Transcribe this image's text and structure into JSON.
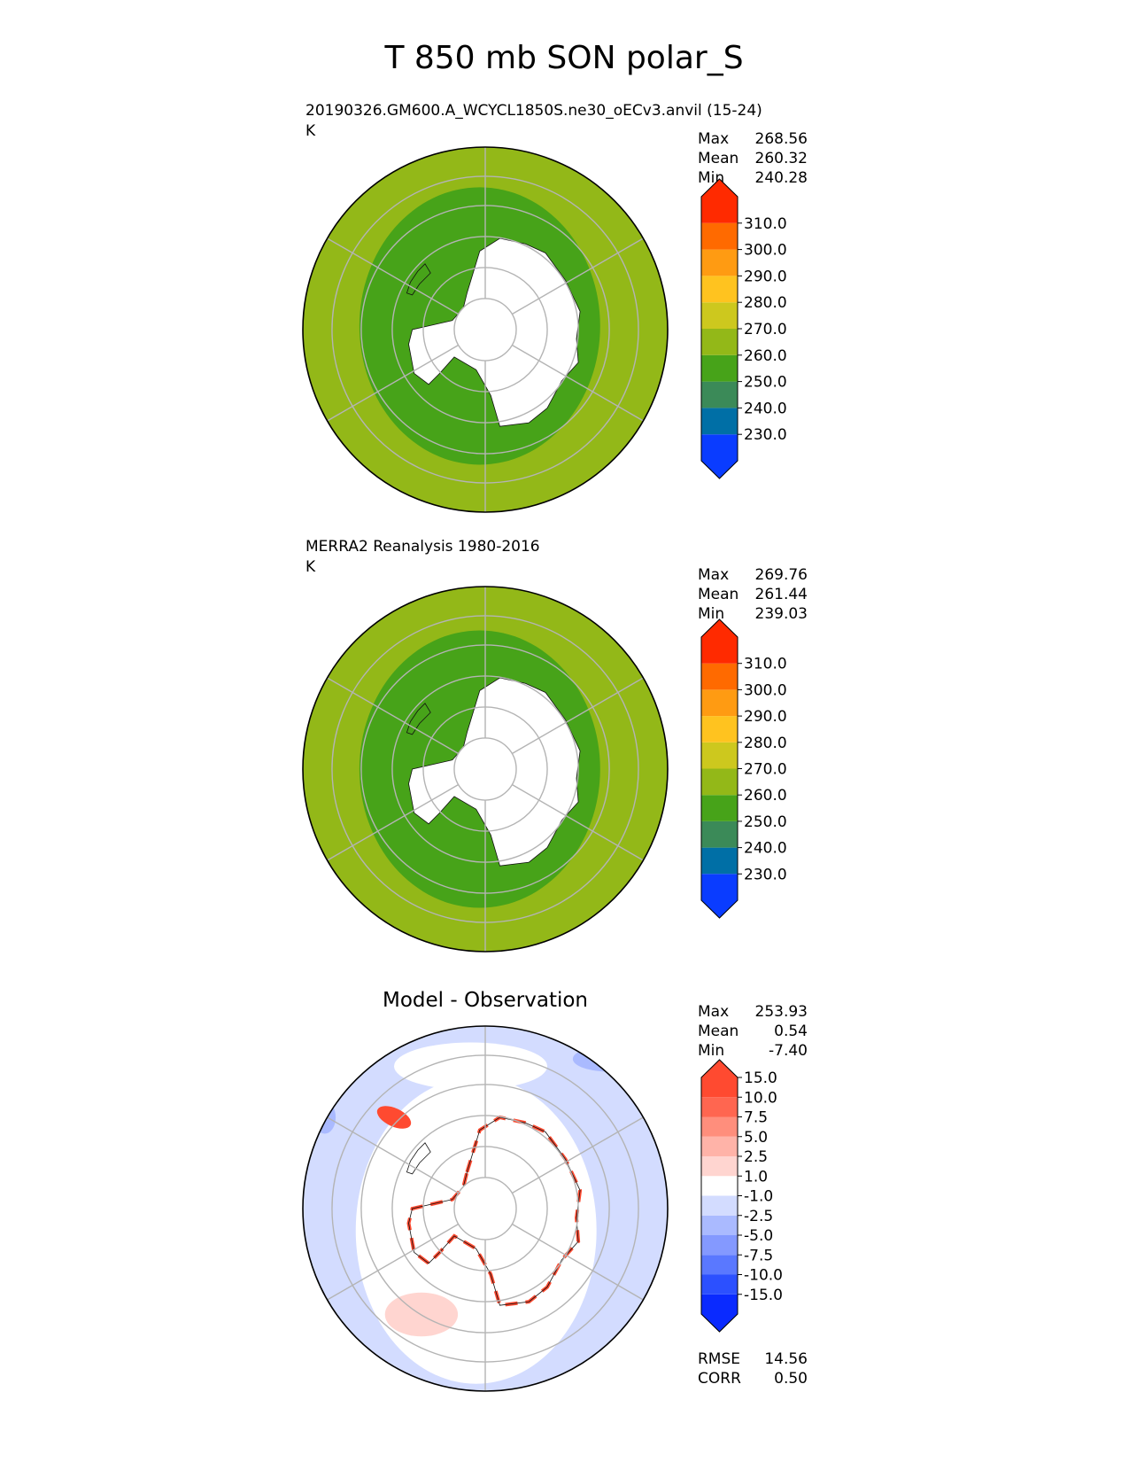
{
  "figure": {
    "title": "T 850 mb SON polar_S"
  },
  "chart_data": [
    {
      "type": "heatmap",
      "projection": "south-polar-stereographic",
      "title": "20190326.GM600.A_WCYCL1850S.ne30_oECv3.anvil (15-24)",
      "units": "K",
      "stats": {
        "max_label": "Max",
        "max": "268.56",
        "mean_label": "Mean",
        "mean": "260.32",
        "min_label": "Min",
        "min": "240.28"
      },
      "colorbar": {
        "extend": "both",
        "colors": [
          "#0a3cff",
          "#006fa6",
          "#3b8a58",
          "#47a319",
          "#93b818",
          "#cdc81e",
          "#ffc31f",
          "#ff9b12",
          "#ff6a00",
          "#ff2a00"
        ],
        "tick_labels": [
          "230.0",
          "240.0",
          "250.0",
          "260.0",
          "270.0",
          "280.0",
          "290.0",
          "300.0",
          "310.0"
        ]
      }
    },
    {
      "type": "heatmap",
      "projection": "south-polar-stereographic",
      "title": "MERRA2 Reanalysis 1980-2016",
      "units": "K",
      "stats": {
        "max_label": "Max",
        "max": "269.76",
        "mean_label": "Mean",
        "mean": "261.44",
        "min_label": "Min",
        "min": "239.03"
      },
      "colorbar": {
        "extend": "both",
        "colors": [
          "#0a3cff",
          "#006fa6",
          "#3b8a58",
          "#47a319",
          "#93b818",
          "#cdc81e",
          "#ffc31f",
          "#ff9b12",
          "#ff6a00",
          "#ff2a00"
        ],
        "tick_labels": [
          "230.0",
          "240.0",
          "250.0",
          "260.0",
          "270.0",
          "280.0",
          "290.0",
          "300.0",
          "310.0"
        ]
      }
    },
    {
      "type": "heatmap",
      "projection": "south-polar-stereographic",
      "title": "Model - Observation",
      "stats": {
        "max_label": "Max",
        "max": "253.93",
        "mean_label": "Mean",
        "mean": "0.54",
        "min_label": "Min",
        "min": "-7.40"
      },
      "metrics": {
        "rmse_label": "RMSE",
        "rmse": "14.56",
        "corr_label": "CORR",
        "corr": "0.50"
      },
      "colorbar": {
        "extend": "both",
        "colors": [
          "#0a2aff",
          "#2c50ff",
          "#5a78ff",
          "#8499ff",
          "#aabaff",
          "#d3dcff",
          "#ffffff",
          "#ffd5d0",
          "#ffb3a8",
          "#ff8e7c",
          "#ff6650",
          "#ff4a30"
        ],
        "tick_labels": [
          "-15.0",
          "-10.0",
          "-7.5",
          "-5.0",
          "-2.5",
          "-1.0",
          "1.0",
          "2.5",
          "5.0",
          "7.5",
          "10.0",
          "15.0"
        ]
      }
    }
  ]
}
